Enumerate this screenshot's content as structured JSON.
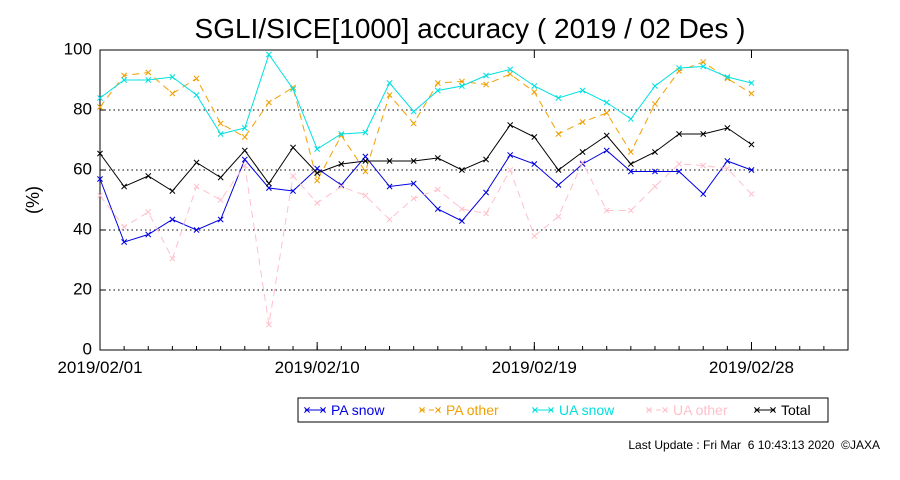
{
  "chart_data": {
    "type": "line",
    "title": "SGLI/SICE[1000] accuracy ( 2019 / 02 Des )",
    "xlabel": "",
    "ylabel": "(%)",
    "xlim": [
      "2019/02/01",
      "2019/03/04"
    ],
    "ylim": [
      0,
      100
    ],
    "grid": "dotted horizontal at 20, 40, 60, 80",
    "legend_position": "bottom",
    "x_ticks": [
      "2019/02/01",
      "2019/02/10",
      "2019/02/19",
      "2019/02/28"
    ],
    "y_ticks": [
      "0",
      "20",
      "40",
      "60",
      "80",
      "100"
    ],
    "x": [
      "2019/02/01",
      "2019/02/02",
      "2019/02/03",
      "2019/02/04",
      "2019/02/05",
      "2019/02/06",
      "2019/02/07",
      "2019/02/08",
      "2019/02/09",
      "2019/02/10",
      "2019/02/11",
      "2019/02/12",
      "2019/02/13",
      "2019/02/14",
      "2019/02/15",
      "2019/02/16",
      "2019/02/17",
      "2019/02/18",
      "2019/02/19",
      "2019/02/20",
      "2019/02/21",
      "2019/02/22",
      "2019/02/23",
      "2019/02/24",
      "2019/02/25",
      "2019/02/26",
      "2019/02/27",
      "2019/02/28"
    ],
    "series": [
      {
        "name": "PA snow",
        "color": "#0000e0",
        "dash": "solid",
        "values": [
          57,
          36,
          38.5,
          43.5,
          40,
          43.5,
          63.5,
          54,
          53,
          60.5,
          55,
          64.5,
          54.5,
          55.5,
          47,
          43,
          52.5,
          65,
          62,
          55,
          62,
          66.5,
          59.5,
          59.5,
          59.5,
          52,
          63,
          60
        ]
      },
      {
        "name": "PA other",
        "color": "#f0a000",
        "dash": "dashed",
        "values": [
          81,
          91.5,
          92.5,
          85.5,
          90.5,
          75.5,
          71,
          82.5,
          87.5,
          56.5,
          71.5,
          59.5,
          85,
          75.5,
          89,
          89.5,
          88.5,
          92,
          86,
          72,
          76,
          79,
          66,
          82,
          93,
          96,
          90.5,
          85.5
        ]
      },
      {
        "name": "UA snow",
        "color": "#00e0e0",
        "dash": "solid",
        "values": [
          84,
          90,
          90,
          91,
          85,
          72,
          74,
          98.5,
          87,
          67,
          72,
          72.5,
          89,
          79.5,
          86.5,
          88,
          91.5,
          93.5,
          88,
          84,
          86.5,
          82.5,
          77,
          88,
          94,
          94.5,
          91,
          89
        ]
      },
      {
        "name": "UA other",
        "color": "#ffc0cb",
        "dash": "dashed",
        "values": [
          51.5,
          41,
          46,
          30.5,
          54.5,
          50,
          61.5,
          8.5,
          58,
          49,
          54.5,
          51.5,
          43.5,
          50.5,
          53.5,
          47,
          45.5,
          60,
          38,
          44.5,
          62.5,
          46.5,
          46.5,
          54.5,
          62,
          61.5,
          60.5,
          52
        ]
      },
      {
        "name": "Total",
        "color": "#000000",
        "dash": "solid",
        "values": [
          65.5,
          54.5,
          58,
          53,
          62.5,
          57.5,
          66.5,
          55.5,
          67.5,
          59,
          62,
          63,
          63,
          63,
          64,
          60,
          63.5,
          75,
          71,
          60,
          66,
          71.5,
          62,
          66,
          72,
          72,
          74,
          68.5
        ]
      }
    ]
  },
  "footer": {
    "text": "Last Update : Fri Mar  6 10:43:13 2020  ©JAXA"
  }
}
